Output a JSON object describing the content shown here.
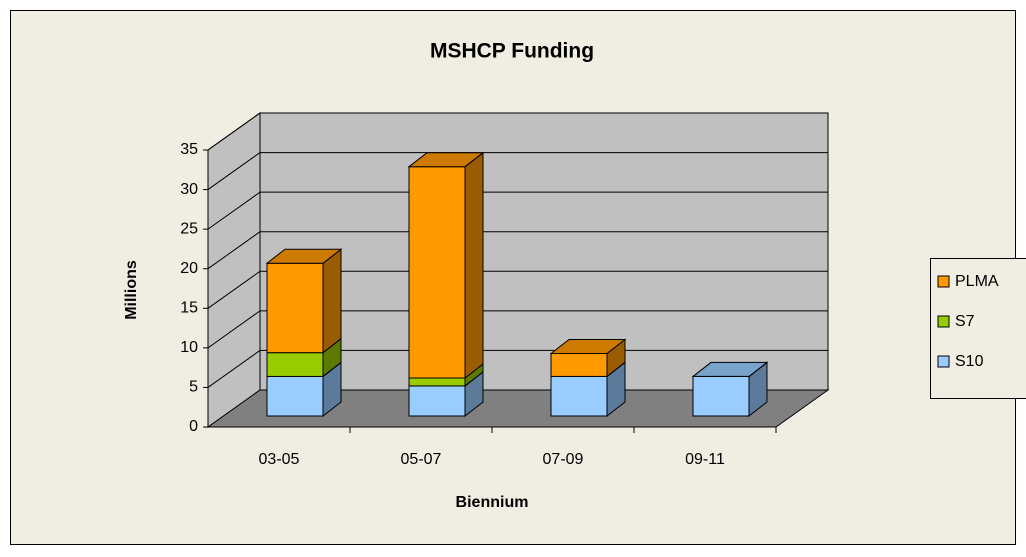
{
  "chart_data": {
    "type": "bar3d_stacked",
    "title": "MSHCP Funding",
    "x_label": "Biennium",
    "y_label": "Millions",
    "categories": [
      "03-05",
      "05-07",
      "07-09",
      "09-11"
    ],
    "series": [
      {
        "name": "S10",
        "color": "#99ccff",
        "values": [
          5,
          3.8,
          5,
          5
        ]
      },
      {
        "name": "S7",
        "color": "#99cc00",
        "values": [
          3,
          1,
          0,
          0
        ]
      },
      {
        "name": "PLMA",
        "color": "#ff9900",
        "values": [
          11.3,
          26.7,
          2.9,
          0
        ]
      }
    ],
    "ylim": [
      0,
      35
    ],
    "yticks": [
      0,
      5,
      10,
      15,
      20,
      25,
      30,
      35
    ],
    "grid": true,
    "legend": "right"
  }
}
